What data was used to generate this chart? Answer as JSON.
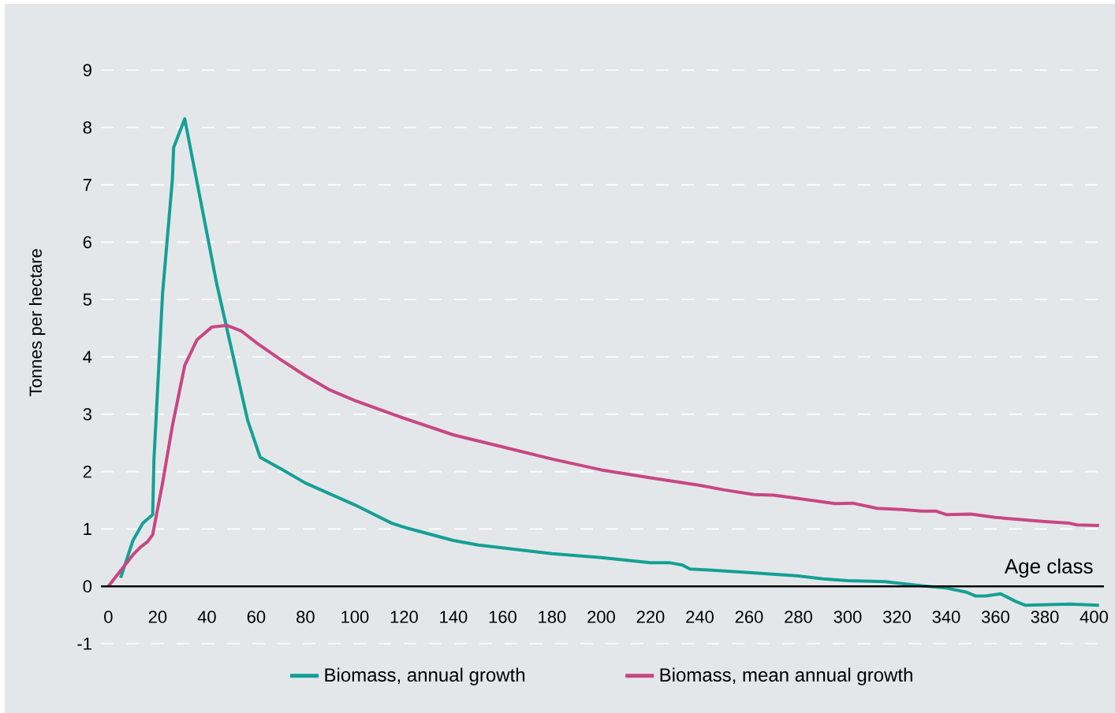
{
  "chart_data": {
    "type": "line",
    "xlabel": "Age class",
    "ylabel": "Tonnes per hectare",
    "xlim": [
      -3,
      404
    ],
    "ylim": [
      -1,
      9
    ],
    "xticks": [
      0,
      20,
      40,
      60,
      80,
      100,
      120,
      140,
      160,
      180,
      200,
      220,
      240,
      260,
      280,
      300,
      320,
      340,
      360,
      380,
      400
    ],
    "yticks": [
      -1,
      0,
      1,
      2,
      3,
      4,
      5,
      6,
      7,
      8,
      9
    ],
    "grid": "y",
    "legend": "bottom",
    "marker": "none",
    "line_style": "solid",
    "ref_lines": [
      {
        "axis": "y",
        "value": 0,
        "color": "#000000"
      }
    ],
    "series": [
      {
        "name": "Biomass, annual growth",
        "color": "#14a096",
        "x": [
          5,
          10,
          14,
          18,
          18.5,
          22,
          26,
          26.5,
          31,
          44,
          56.5,
          61.6,
          70,
          80,
          100,
          115,
          120,
          140,
          150,
          180,
          200,
          220,
          228,
          233,
          236,
          245,
          260,
          280,
          290,
          300,
          315,
          330,
          340,
          348,
          352,
          356,
          362,
          368,
          372,
          390,
          402
        ],
        "values": [
          0.15,
          0.8,
          1.1,
          1.25,
          2.2,
          5.1,
          7.1,
          7.65,
          8.15,
          5.27,
          2.9,
          2.25,
          2.05,
          1.8,
          1.42,
          1.1,
          1.03,
          0.8,
          0.72,
          0.57,
          0.5,
          0.41,
          0.41,
          0.37,
          0.3,
          0.28,
          0.24,
          0.18,
          0.13,
          0.1,
          0.08,
          0.01,
          -0.03,
          -0.1,
          -0.17,
          -0.17,
          -0.13,
          -0.26,
          -0.33,
          -0.31,
          -0.33
        ]
      },
      {
        "name": "Biomass, mean annual growth",
        "color": "#c74783",
        "x": [
          0,
          10,
          13,
          16,
          18,
          22,
          26,
          31,
          36,
          42,
          48,
          54,
          60,
          70,
          80,
          90,
          100,
          120,
          140,
          160,
          180,
          200,
          220,
          240,
          250,
          262,
          270,
          280,
          295,
          302,
          312,
          322,
          330,
          336,
          340,
          350,
          360,
          380,
          390,
          393,
          402
        ],
        "values": [
          0,
          0.55,
          0.68,
          0.78,
          0.9,
          1.8,
          2.8,
          3.85,
          4.3,
          4.52,
          4.55,
          4.45,
          4.25,
          3.95,
          3.67,
          3.42,
          3.24,
          2.93,
          2.64,
          2.43,
          2.22,
          2.03,
          1.89,
          1.76,
          1.68,
          1.6,
          1.59,
          1.53,
          1.44,
          1.45,
          1.36,
          1.34,
          1.31,
          1.31,
          1.25,
          1.26,
          1.2,
          1.13,
          1.1,
          1.07,
          1.06
        ]
      }
    ]
  }
}
